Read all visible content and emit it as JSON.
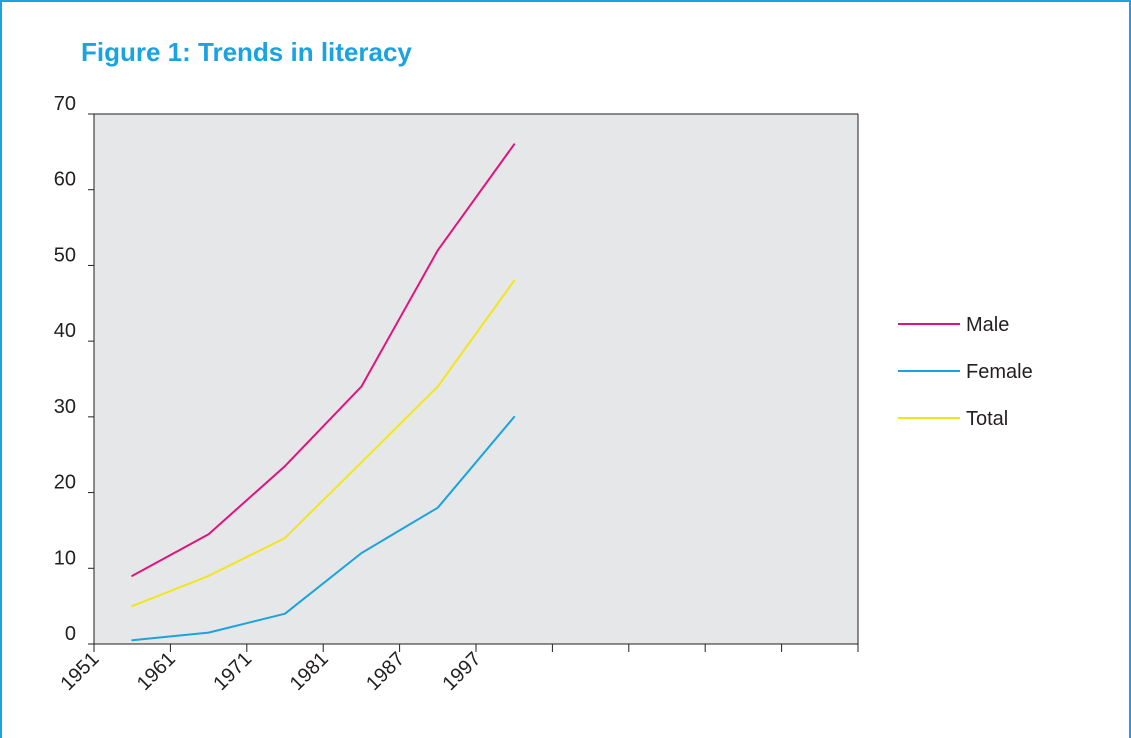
{
  "chart_data": {
    "type": "line",
    "title": "Figure 1: Trends in literacy",
    "xlabel": "",
    "ylabel": "",
    "ylim": [
      0,
      70
    ],
    "yticks": [
      0,
      10,
      20,
      30,
      40,
      50,
      60,
      70
    ],
    "x_tick_labels": [
      "1951",
      "1961",
      "1971",
      "1981",
      "1987",
      "1997",
      "",
      "",
      "",
      ""
    ],
    "grid": false,
    "legend_position": "right",
    "background": "#e6e7e8",
    "series": [
      {
        "name": "Male",
        "color": "#e0147e",
        "values": [
          9,
          14.5,
          23.5,
          34,
          52,
          66
        ]
      },
      {
        "name": "Female",
        "color": "#1aa3e0",
        "values": [
          0.5,
          1.5,
          4,
          12,
          18,
          30
        ]
      },
      {
        "name": "Total",
        "color": "#f2e61a",
        "values": [
          5,
          9,
          14,
          24,
          34,
          48
        ]
      }
    ]
  }
}
